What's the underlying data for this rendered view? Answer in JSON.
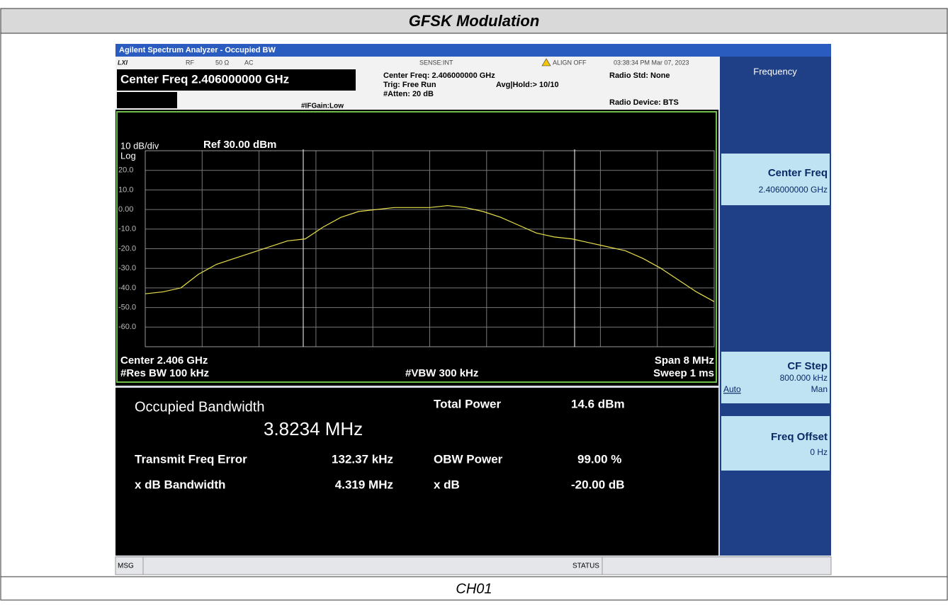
{
  "header": {
    "title": "GFSK Modulation"
  },
  "footer": {
    "caption": "CH01"
  },
  "screen": {
    "title_bar": "Agilent Spectrum Analyzer - Occupied BW",
    "status_top": {
      "logo": "LXI",
      "rf": "RF",
      "impedance": "50 Ω",
      "coupling": "AC",
      "sense": "SENSE:INT",
      "align": "ALIGN OFF",
      "datetime": "03:38:34 PM Mar 07, 2023"
    },
    "active_function": "Center Freq 2.406000000 GHz",
    "if_gain": "#IFGain:Low",
    "settings": [
      "Center Freq: 2.406000000 GHz",
      "Trig: Free Run",
      "#Atten: 20 dB"
    ],
    "avg_hold": "Avg|Hold:> 10/10",
    "radio_std": "Radio Std: None",
    "radio_device": "Radio Device: BTS",
    "softkeys": {
      "menu": "Frequency",
      "center_freq": {
        "label": "Center Freq",
        "value": "2.406000000 GHz"
      },
      "cf_step": {
        "label": "CF Step",
        "value": "800.000 kHz",
        "auto": "Auto",
        "man": "Man"
      },
      "freq_offset": {
        "label": "Freq Offset",
        "value": "0 Hz"
      }
    },
    "plot": {
      "type": "line",
      "scale": "10 dB/div",
      "ref": "Ref 30.00 dBm",
      "log": "Log",
      "ylim": [
        -70,
        30
      ],
      "yticks": [
        {
          "value": 20,
          "label": "20.0"
        },
        {
          "value": 10,
          "label": "10.0"
        },
        {
          "value": 0,
          "label": "0.00"
        },
        {
          "value": -10,
          "label": "-10.0"
        },
        {
          "value": -20,
          "label": "-20.0"
        },
        {
          "value": -30,
          "label": "-30.0"
        },
        {
          "value": -40,
          "label": "-40.0"
        },
        {
          "value": -50,
          "label": "-50.0"
        },
        {
          "value": -60,
          "label": "-60.0"
        }
      ],
      "color": "#e8e04a",
      "values": [
        -43,
        -42,
        -40,
        -33,
        -28,
        -25,
        -22,
        -19,
        -16,
        -15,
        -9,
        -4,
        -1,
        0,
        1,
        1,
        1,
        2,
        1,
        -1,
        -4,
        -8,
        -12,
        -14,
        -15,
        -17,
        -19,
        -21,
        -25,
        -30,
        -36,
        -42,
        -47
      ],
      "center": "Center 2.406 GHz",
      "res_bw": "#Res BW 100 kHz",
      "vbw": "#VBW 300 kHz",
      "span": "Span 8 MHz",
      "sweep": "Sweep 1 ms"
    },
    "results": {
      "obw_label": "Occupied Bandwidth",
      "obw_value": "3.8234 MHz",
      "tfe_label": "Transmit Freq Error",
      "tfe_value": "132.37 kHz",
      "xdb_bw_label": "x dB Bandwidth",
      "xdb_bw_value": "4.319 MHz",
      "total_power_label": "Total Power",
      "total_power_value": "14.6 dBm",
      "obw_power_label": "OBW Power",
      "obw_power_value": "99.00 %",
      "xdb_label": "x dB",
      "xdb_value": "-20.00 dB"
    },
    "msg": "MSG",
    "status": "STATUS"
  }
}
